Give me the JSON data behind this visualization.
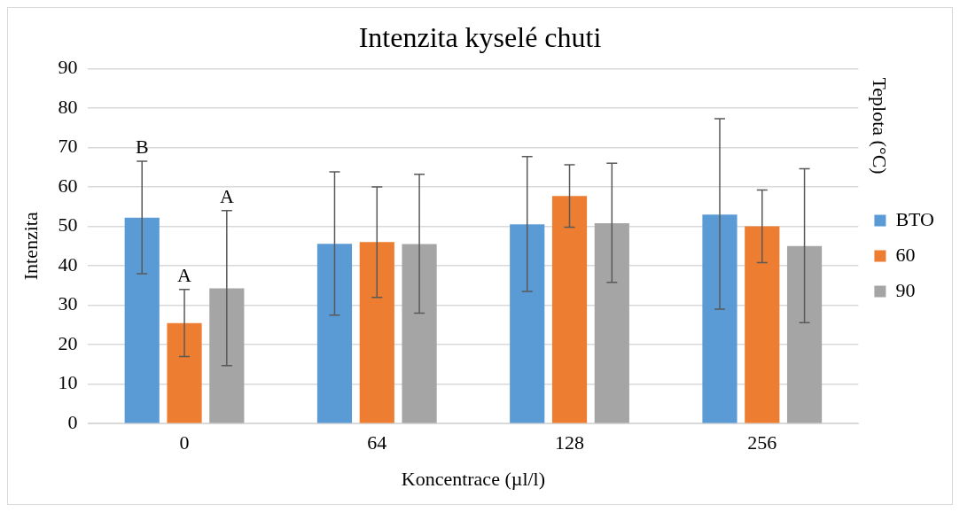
{
  "chart_data": {
    "type": "bar",
    "title": "Intenzita kyselé chuti",
    "xlabel": "Koncentrace (µl/l)",
    "ylabel": "Intenzita",
    "legend_title": "Teplota (°C)",
    "categories": [
      "0",
      "64",
      "128",
      "256"
    ],
    "series": [
      {
        "name": "BTO",
        "color": "#5b9bd5",
        "values": [
          52.2,
          45.6,
          50.5,
          53
        ],
        "errors": [
          [
            38,
            66.5
          ],
          [
            27.5,
            63.8
          ],
          [
            33.5,
            67.7
          ],
          [
            29,
            77.3
          ]
        ]
      },
      {
        "name": "60",
        "color": "#ed7d31",
        "values": [
          25.5,
          46,
          57.7,
          50
        ],
        "errors": [
          [
            17,
            34
          ],
          [
            32,
            60
          ],
          [
            49.8,
            65.6
          ],
          [
            40.8,
            59.2
          ]
        ]
      },
      {
        "name": "90",
        "color": "#a5a5a5",
        "values": [
          34.3,
          45.5,
          50.8,
          45
        ],
        "errors": [
          [
            14.7,
            54
          ],
          [
            28,
            63.2
          ],
          [
            35.8,
            66
          ],
          [
            25.6,
            64.6
          ]
        ]
      }
    ],
    "ylim": [
      0,
      90
    ],
    "yticks": [
      0,
      10,
      20,
      30,
      40,
      50,
      60,
      70,
      80,
      90
    ],
    "grid": "y",
    "legend": "right",
    "annotations": [
      "B",
      "A",
      "A"
    ]
  }
}
